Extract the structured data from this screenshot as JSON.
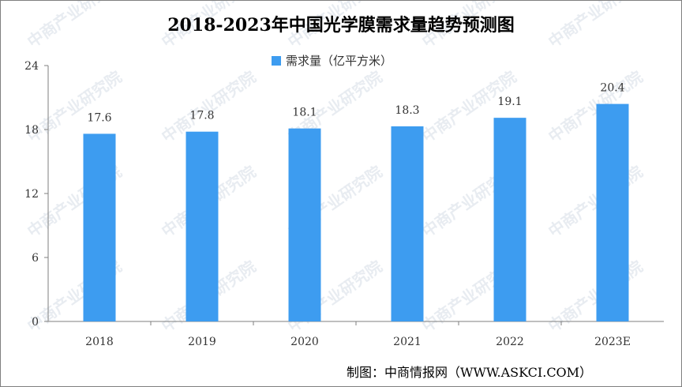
{
  "watermark": "中商产业研究院",
  "source": "制图：中商情报网（WWW.ASKCI.COM）",
  "colors": {
    "bar": "#3d9cf0",
    "axis": "#7f7f7f"
  },
  "chart_data": {
    "type": "bar",
    "title": "2018-2023年中国光学膜需求量趋势预测图",
    "xlabel": "",
    "ylabel": "",
    "categories": [
      "2018",
      "2019",
      "2020",
      "2021",
      "2022",
      "2023E"
    ],
    "series": [
      {
        "name": "需求量（亿平方米）",
        "values": [
          17.6,
          17.8,
          18.1,
          18.3,
          19.1,
          20.4
        ]
      }
    ],
    "value_labels": [
      "17.6",
      "17.8",
      "18.1",
      "18.3",
      "19.1",
      "20.4"
    ],
    "yticks": [
      0,
      6,
      12,
      18,
      24
    ],
    "ylim": [
      0,
      24
    ],
    "legend_position": "top-center",
    "grid": false
  }
}
